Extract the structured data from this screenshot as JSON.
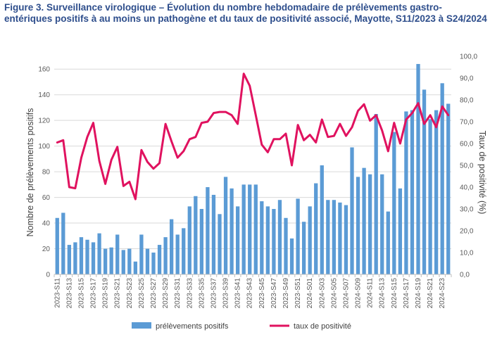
{
  "title": "Figure 3. Surveillance virologique – Évolution du nombre hebdomadaire de prélèvements gastro-entériques positifs à au moins un pathogène et du taux de positivité associé, Mayotte, S11/2023 à S24/2024",
  "chart_data": {
    "type": "bar",
    "categories": [
      "2023-S11",
      "2023-S12",
      "2023-S13",
      "2023-S14",
      "2023-S15",
      "2023-S16",
      "2023-S17",
      "2023-S18",
      "2023-S19",
      "2023-S20",
      "2023-S21",
      "2023-S22",
      "2023-S23",
      "2023-S24",
      "2023-S25",
      "2023-S26",
      "2023-S27",
      "2023-S28",
      "2023-S29",
      "2023-S30",
      "2023-S31",
      "2023-S32",
      "2023-S33",
      "2023-S34",
      "2023-S35",
      "2023-S36",
      "2023-S37",
      "2023-S38",
      "2023-S39",
      "2023-S40",
      "2023-S41",
      "2023-S42",
      "2023-S43",
      "2023-S44",
      "2023-S45",
      "2023-S46",
      "2023-S47",
      "2023-S48",
      "2023-S49",
      "2023-S50",
      "2023-S51",
      "2023-S52",
      "2024-S01",
      "2024-S02",
      "2024-S03",
      "2024-S04",
      "2024-S05",
      "2024-S06",
      "2024-S07",
      "2024-S08",
      "2024-S09",
      "2024-S10",
      "2024-S11",
      "2024-S12",
      "2024-S13",
      "2024-S14",
      "2024-S15",
      "2024-S16",
      "2024-S17",
      "2024-S18",
      "2024-S19",
      "2024-S20",
      "2024-S21",
      "2024-S22",
      "2024-S23",
      "2024-S24"
    ],
    "series": [
      {
        "name": "prélèvements positifs",
        "type": "bar",
        "axis": "left",
        "color": "#5b9bd5",
        "values": [
          44,
          48,
          23,
          25,
          29,
          27,
          25,
          32,
          20,
          21,
          31,
          19,
          20,
          10,
          31,
          20,
          17,
          23,
          29,
          43,
          31,
          36,
          53,
          61,
          51,
          68,
          62,
          47,
          76,
          67,
          53,
          70,
          70,
          70,
          57,
          53,
          51,
          58,
          44,
          28,
          59,
          41,
          53,
          71,
          85,
          58,
          58,
          56,
          54,
          99,
          76,
          83,
          78,
          125,
          78,
          49,
          111,
          67,
          127,
          128,
          164,
          144,
          121,
          128,
          149,
          133
        ]
      },
      {
        "name": "taux de positivité",
        "type": "line",
        "axis": "right",
        "color": "#e0125f",
        "values": [
          60.5,
          61.5,
          40,
          39.5,
          53.5,
          63,
          69.5,
          52,
          41.5,
          52.5,
          58.5,
          40.5,
          42.5,
          34.5,
          57,
          51.5,
          48.5,
          51,
          69,
          61,
          53.5,
          56.5,
          62,
          63,
          69.5,
          70,
          74,
          74.5,
          74.5,
          73,
          69,
          92,
          86.5,
          73,
          59.5,
          56,
          62,
          62,
          64.5,
          50,
          68.5,
          61.5,
          64,
          60.5,
          71,
          63,
          63.5,
          69,
          63.5,
          67.5,
          75,
          78,
          70.5,
          73,
          66,
          56.5,
          69.5,
          60,
          71,
          74,
          78.5,
          69,
          73,
          67.5,
          77,
          73
        ]
      }
    ],
    "ylabel": "Nombre de prélèvements positifs",
    "y2label": "Taux de positivité (%)",
    "ylim": [
      0,
      170
    ],
    "y2lim": [
      0,
      100
    ],
    "yticks": [
      "0",
      "20",
      "40",
      "60",
      "80",
      "100",
      "120",
      "140",
      "160"
    ],
    "y2ticks": [
      "0,0",
      "10,0",
      "20,0",
      "30,0",
      "40,0",
      "50,0",
      "60,0",
      "70,0",
      "80,0",
      "90,0",
      "100,0"
    ],
    "grid": "horizontal",
    "legend": "bottom"
  }
}
